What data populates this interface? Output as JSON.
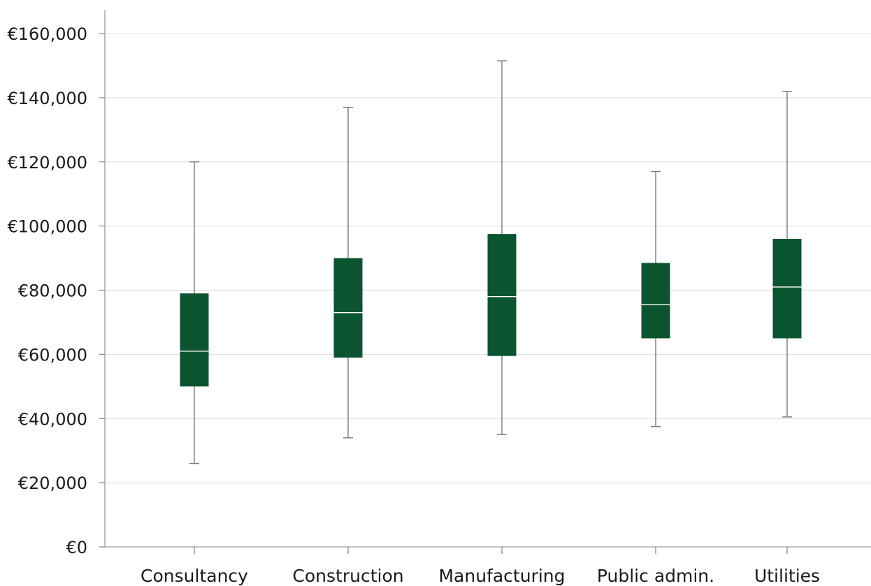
{
  "chart_data": {
    "type": "box",
    "title": "",
    "xlabel": "",
    "ylabel": "",
    "ylim": [
      0,
      160000
    ],
    "ytick_values": [
      0,
      20000,
      40000,
      60000,
      80000,
      100000,
      120000,
      140000,
      160000
    ],
    "ytick_labels": [
      "€0",
      "€20,000",
      "€40,000",
      "€60,000",
      "€80,000",
      "€100,000",
      "€120,000",
      "€140,000",
      "€160,000"
    ],
    "grid": true,
    "legend": "none",
    "box_color": "#0a5530",
    "median_color": "#ffffff",
    "whisker_color": "#7a7a7a",
    "categories": [
      "Consultancy",
      "Construction",
      "Manufacturing",
      "Public admin.",
      "Utilities"
    ],
    "boxes": [
      {
        "category": "Consultancy",
        "min": 26000,
        "q1": 50000,
        "median": 61000,
        "q3": 79000,
        "max": 120000
      },
      {
        "category": "Construction",
        "min": 34000,
        "q1": 59000,
        "median": 73000,
        "q3": 90000,
        "max": 137000
      },
      {
        "category": "Manufacturing",
        "min": 35000,
        "q1": 59500,
        "median": 78000,
        "q3": 97500,
        "max": 151500
      },
      {
        "category": "Public admin.",
        "min": 37500,
        "q1": 65000,
        "median": 75500,
        "q3": 88500,
        "max": 117000
      },
      {
        "category": "Utilities",
        "min": 40500,
        "q1": 65000,
        "median": 81000,
        "q3": 96000,
        "max": 142000
      }
    ]
  }
}
